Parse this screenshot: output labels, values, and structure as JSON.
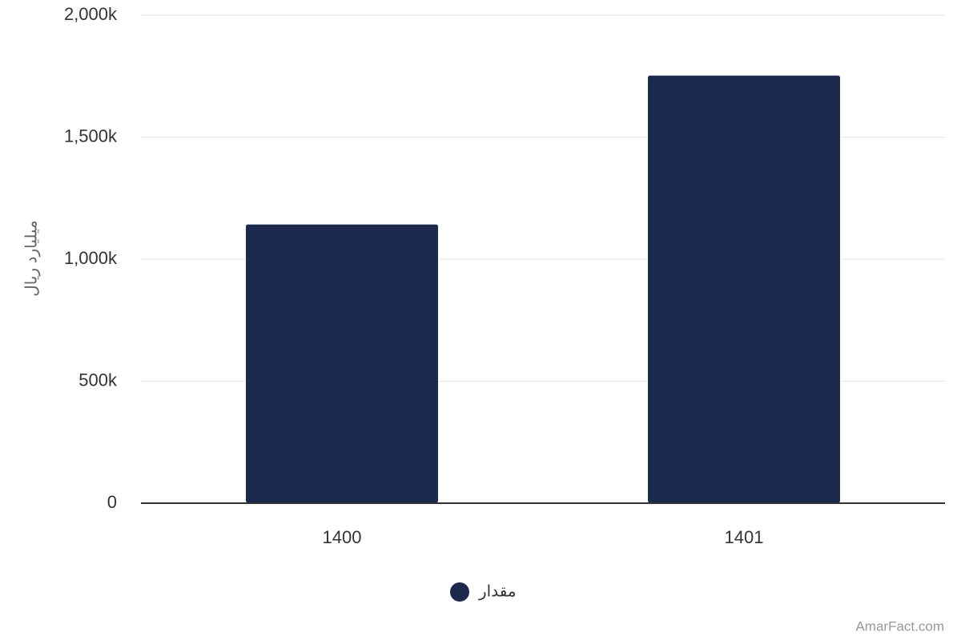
{
  "chart_data": {
    "type": "bar",
    "y_label": "میلیارد ریال",
    "categories": [
      "1400",
      "1401"
    ],
    "series": [
      {
        "name": "مقدار",
        "color": "#1b2a4c",
        "values": [
          1144000,
          1754000
        ]
      }
    ],
    "ylim": [
      0,
      2000000
    ],
    "yticks": [
      0,
      {
        "value": 500000,
        "label": "500k"
      },
      {
        "value": 1000000,
        "label": "1,000k"
      },
      {
        "value": 1500000,
        "label": "1,500k"
      },
      {
        "value": 2000000,
        "label": "2,000k"
      }
    ],
    "grid": true,
    "legend": "bottom",
    "credit": "AmarFact.com"
  }
}
